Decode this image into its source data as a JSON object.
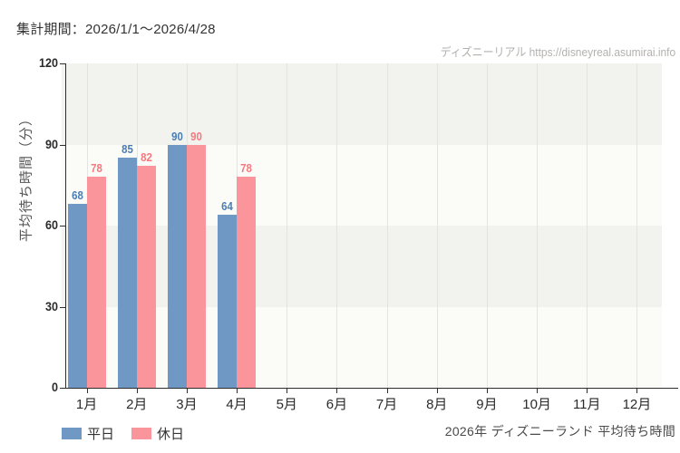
{
  "page": {
    "header": "集計期間：2026/1/1〜2026/4/28",
    "watermark": "ディズニーリアル https://disneyreal.asumirai.info",
    "caption": "2026年 ディズニーランド 平均待ち時間"
  },
  "chart_data": {
    "type": "bar",
    "title": "2026年 ディズニーランド 平均待ち時間",
    "subtitle": "集計期間：2026/1/1〜2026/4/28",
    "xlabel": "",
    "ylabel": "平均待ち時間（分）",
    "ylim": [
      0,
      120
    ],
    "yticks": [
      0,
      30,
      60,
      90,
      120
    ],
    "categories": [
      "1月",
      "2月",
      "3月",
      "4月",
      "5月",
      "6月",
      "7月",
      "8月",
      "9月",
      "10月",
      "11月",
      "12月"
    ],
    "series": [
      {
        "name": "平日",
        "color": "#6f98c5",
        "label_color": "#4a7db3",
        "values": [
          68,
          85,
          90,
          64,
          null,
          null,
          null,
          null,
          null,
          null,
          null,
          null
        ]
      },
      {
        "name": "休日",
        "color": "#fa969b",
        "label_color": "#f8777f",
        "values": [
          78,
          82,
          90,
          78,
          null,
          null,
          null,
          null,
          null,
          null,
          null,
          null
        ]
      }
    ],
    "legend_position": "bottom-left",
    "grid": true,
    "band_colors": [
      "#fbfcf7",
      "#f2f3ef"
    ],
    "gridline_color": "#e3e3df",
    "axis_color": "#2e2e2e"
  }
}
